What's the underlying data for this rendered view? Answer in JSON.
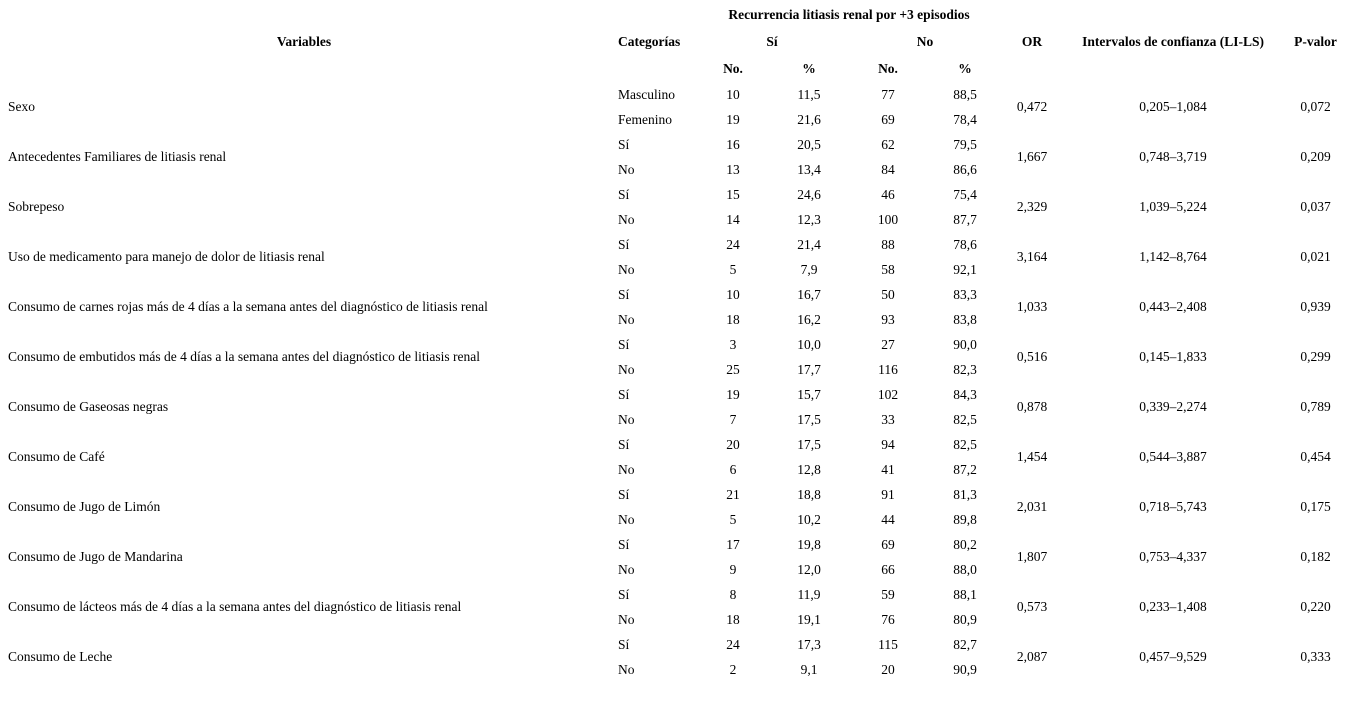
{
  "table": {
    "title": "Recurrencia litiasis renal por +3 episodios",
    "headers": {
      "variables": "Variables",
      "categories": "Categorías",
      "yes": "Sí",
      "no": "No",
      "count": "No.",
      "percent": "%",
      "or": "OR",
      "ci": "Intervalos de confianza (LI-LS)",
      "pvalue": "P-valor"
    },
    "rows": [
      {
        "variable": "Sexo",
        "or": "0,472",
        "ci": "0,205–1,084",
        "p": "0,072",
        "categories": [
          {
            "label": "Masculino",
            "yes_n": "10",
            "yes_pct": "11,5",
            "no_n": "77",
            "no_pct": "88,5"
          },
          {
            "label": "Femenino",
            "yes_n": "19",
            "yes_pct": "21,6",
            "no_n": "69",
            "no_pct": "78,4"
          }
        ]
      },
      {
        "variable": "Antecedentes Familiares de litiasis renal",
        "or": "1,667",
        "ci": "0,748–3,719",
        "p": "0,209",
        "categories": [
          {
            "label": "Sí",
            "yes_n": "16",
            "yes_pct": "20,5",
            "no_n": "62",
            "no_pct": "79,5"
          },
          {
            "label": "No",
            "yes_n": "13",
            "yes_pct": "13,4",
            "no_n": "84",
            "no_pct": "86,6"
          }
        ]
      },
      {
        "variable": "Sobrepeso",
        "or": "2,329",
        "ci": "1,039–5,224",
        "p": "0,037",
        "categories": [
          {
            "label": "Sí",
            "yes_n": "15",
            "yes_pct": "24,6",
            "no_n": "46",
            "no_pct": "75,4"
          },
          {
            "label": "No",
            "yes_n": "14",
            "yes_pct": "12,3",
            "no_n": "100",
            "no_pct": "87,7"
          }
        ]
      },
      {
        "variable": "Uso de medicamento para manejo de dolor de litiasis renal",
        "or": "3,164",
        "ci": "1,142–8,764",
        "p": "0,021",
        "categories": [
          {
            "label": "Sí",
            "yes_n": "24",
            "yes_pct": "21,4",
            "no_n": "88",
            "no_pct": "78,6"
          },
          {
            "label": "No",
            "yes_n": "5",
            "yes_pct": "7,9",
            "no_n": "58",
            "no_pct": "92,1"
          }
        ]
      },
      {
        "variable": "Consumo de carnes rojas más de 4 días a la semana antes del diagnóstico de litiasis renal",
        "or": "1,033",
        "ci": "0,443–2,408",
        "p": "0,939",
        "categories": [
          {
            "label": "Sí",
            "yes_n": "10",
            "yes_pct": "16,7",
            "no_n": "50",
            "no_pct": "83,3"
          },
          {
            "label": "No",
            "yes_n": "18",
            "yes_pct": "16,2",
            "no_n": "93",
            "no_pct": "83,8"
          }
        ]
      },
      {
        "variable": "Consumo de embutidos más de 4 días a la semana antes del diagnóstico de litiasis renal",
        "or": "0,516",
        "ci": "0,145–1,833",
        "p": "0,299",
        "categories": [
          {
            "label": "Sí",
            "yes_n": "3",
            "yes_pct": "10,0",
            "no_n": "27",
            "no_pct": "90,0"
          },
          {
            "label": "No",
            "yes_n": "25",
            "yes_pct": "17,7",
            "no_n": "116",
            "no_pct": "82,3"
          }
        ]
      },
      {
        "variable": "Consumo de Gaseosas negras",
        "or": "0,878",
        "ci": "0,339–2,274",
        "p": "0,789",
        "categories": [
          {
            "label": "Sí",
            "yes_n": "19",
            "yes_pct": "15,7",
            "no_n": "102",
            "no_pct": "84,3"
          },
          {
            "label": "No",
            "yes_n": "7",
            "yes_pct": "17,5",
            "no_n": "33",
            "no_pct": "82,5"
          }
        ]
      },
      {
        "variable": "Consumo de Café",
        "or": "1,454",
        "ci": "0,544–3,887",
        "p": "0,454",
        "categories": [
          {
            "label": "Sí",
            "yes_n": "20",
            "yes_pct": "17,5",
            "no_n": "94",
            "no_pct": "82,5"
          },
          {
            "label": "No",
            "yes_n": "6",
            "yes_pct": "12,8",
            "no_n": "41",
            "no_pct": "87,2"
          }
        ]
      },
      {
        "variable": "Consumo de Jugo de Limón",
        "or": "2,031",
        "ci": "0,718–5,743",
        "p": "0,175",
        "categories": [
          {
            "label": "Sí",
            "yes_n": "21",
            "yes_pct": "18,8",
            "no_n": "91",
            "no_pct": "81,3"
          },
          {
            "label": "No",
            "yes_n": "5",
            "yes_pct": "10,2",
            "no_n": "44",
            "no_pct": "89,8"
          }
        ]
      },
      {
        "variable": "Consumo de Jugo de Mandarina",
        "or": "1,807",
        "ci": "0,753–4,337",
        "p": "0,182",
        "categories": [
          {
            "label": "Sí",
            "yes_n": "17",
            "yes_pct": "19,8",
            "no_n": "69",
            "no_pct": "80,2"
          },
          {
            "label": "No",
            "yes_n": "9",
            "yes_pct": "12,0",
            "no_n": "66",
            "no_pct": "88,0"
          }
        ]
      },
      {
        "variable": "Consumo de lácteos más de 4 días a la semana antes del diagnóstico de litiasis renal",
        "or": "0,573",
        "ci": "0,233–1,408",
        "p": "0,220",
        "categories": [
          {
            "label": "Sí",
            "yes_n": "8",
            "yes_pct": "11,9",
            "no_n": "59",
            "no_pct": "88,1"
          },
          {
            "label": "No",
            "yes_n": "18",
            "yes_pct": "19,1",
            "no_n": "76",
            "no_pct": "80,9"
          }
        ]
      },
      {
        "variable": "Consumo de Leche",
        "or": "2,087",
        "ci": "0,457–9,529",
        "p": "0,333",
        "categories": [
          {
            "label": "Sí",
            "yes_n": "24",
            "yes_pct": "17,3",
            "no_n": "115",
            "no_pct": "82,7"
          },
          {
            "label": "No",
            "yes_n": "2",
            "yes_pct": "9,1",
            "no_n": "20",
            "no_pct": "90,9"
          }
        ]
      }
    ]
  }
}
